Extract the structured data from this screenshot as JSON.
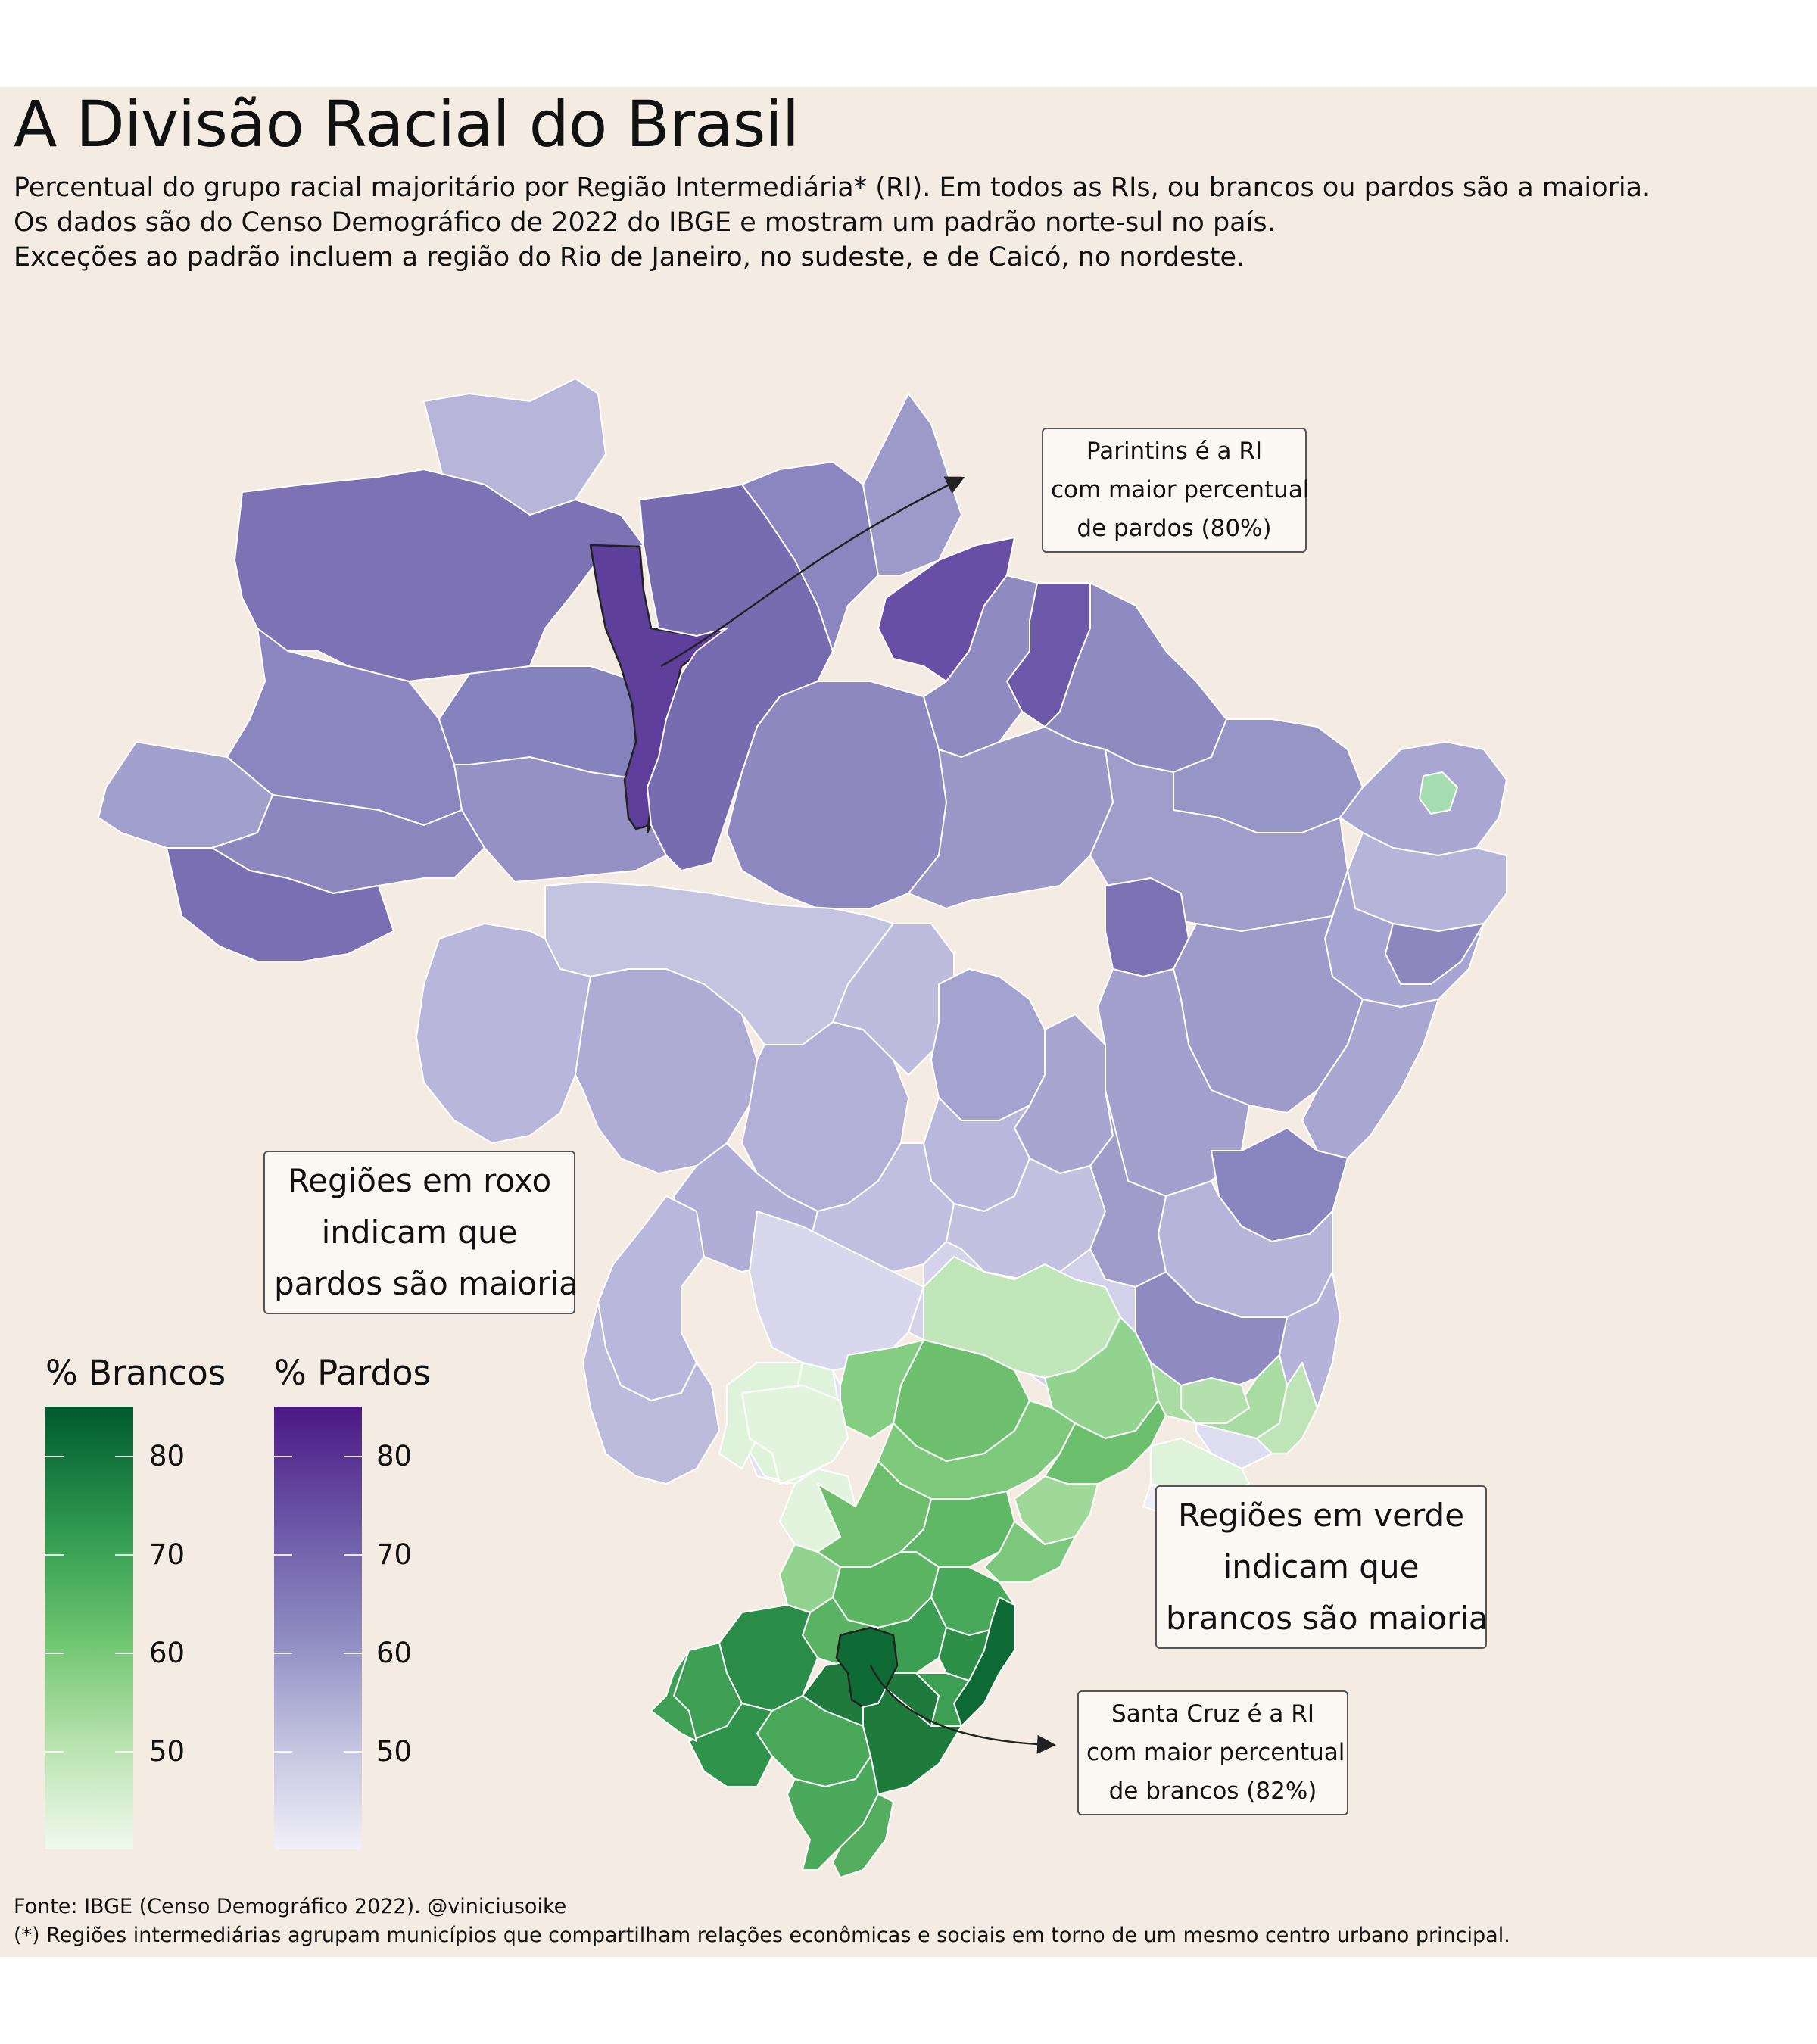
{
  "title": "A Divisão Racial do Brasil",
  "subtitle": [
    "Percentual do grupo racial majoritário por Região Intermediária* (RI). Em todos as RIs, ou brancos ou pardos são a maioria.",
    "Os dados são do Censo Demográfico de 2022 do IBGE e mostram um padrão norte-sul no país.",
    "Exceções ao padrão incluem a região do Rio de Janeiro, no sudeste, e de Caicó, no nordeste."
  ],
  "annotations": {
    "parintins": [
      "Parintins é a RI",
      "com maior percentual",
      "de pardos (80%)"
    ],
    "santa_cruz": [
      "Santa Cruz é a RI",
      "com maior percentual",
      "de brancos (82%)"
    ],
    "roxo": [
      "Regiões em roxo",
      "indicam que",
      "pardos são maioria"
    ],
    "verde": [
      "Regiões em verde",
      "indicam que",
      "brancos são maioria"
    ]
  },
  "legend": {
    "brancos": {
      "title": "% Brancos",
      "ticks": [
        "80",
        "70",
        "60",
        "50"
      ],
      "color_high": "#00592e",
      "color_low": "#f1f9ee"
    },
    "pardos": {
      "title": "% Pardos",
      "ticks": [
        "80",
        "70",
        "60",
        "50"
      ],
      "color_high": "#4a1884",
      "color_low": "#f1eff8"
    }
  },
  "map": {
    "regions": [
      {
        "group": "pardos",
        "value": 80,
        "highlight": "Parintins"
      },
      {
        "group": "brancos",
        "value": 82,
        "highlight": "Santa Cruz"
      }
    ],
    "colors": {
      "background": "#f4ece2",
      "border": "#ffffff"
    }
  },
  "footer": [
    "Fonte: IBGE (Censo Demográfico 2022). @viniciusoike",
    "(*) Regiões intermediárias agrupam municípios que compartilham relações econômicas e sociais em torno de um mesmo centro urbano principal."
  ]
}
